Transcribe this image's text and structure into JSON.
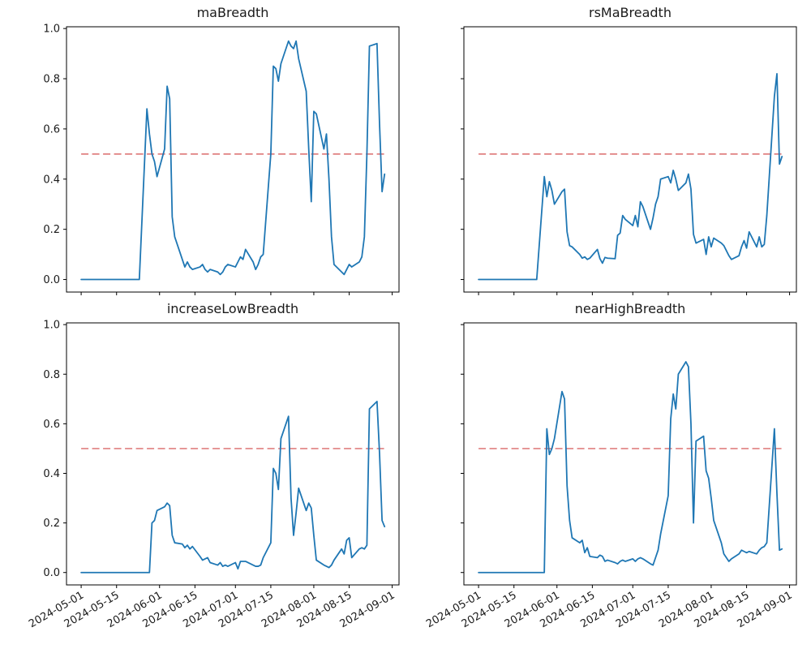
{
  "figure": {
    "background": "#ffffff",
    "spine_color": "#000000",
    "text_color": "#1a1a1a"
  },
  "chart_data": {
    "type": "line",
    "layout": "2x2-grid",
    "grid": false,
    "legend": "none",
    "line_color": "#1f77b4",
    "threshold": {
      "y": 0.5,
      "color": "#e08080",
      "style": "dashed"
    },
    "ylim": [
      -0.05,
      1.007
    ],
    "xlim_days": [
      -5.8,
      125.7
    ],
    "y_tick_labels": [
      "0.0",
      "0.2",
      "0.4",
      "0.6",
      "0.8",
      "1.0"
    ],
    "x_tick_labels": [
      "2024-05-01",
      "2024-05-15",
      "2024-06-01",
      "2024-06-15",
      "2024-07-01",
      "2024-07-15",
      "2024-08-01",
      "2024-08-15",
      "2024-09-01"
    ],
    "dates": [
      "2024-05-01",
      "2024-05-02",
      "2024-05-03",
      "2024-05-06",
      "2024-05-07",
      "2024-05-08",
      "2024-05-09",
      "2024-05-10",
      "2024-05-13",
      "2024-05-14",
      "2024-05-15",
      "2024-05-16",
      "2024-05-17",
      "2024-05-20",
      "2024-05-21",
      "2024-05-22",
      "2024-05-23",
      "2024-05-24",
      "2024-05-27",
      "2024-05-28",
      "2024-05-29",
      "2024-05-30",
      "2024-05-31",
      "2024-06-03",
      "2024-06-04",
      "2024-06-05",
      "2024-06-06",
      "2024-06-07",
      "2024-06-10",
      "2024-06-11",
      "2024-06-12",
      "2024-06-13",
      "2024-06-14",
      "2024-06-17",
      "2024-06-18",
      "2024-06-19",
      "2024-06-20",
      "2024-06-21",
      "2024-06-24",
      "2024-06-25",
      "2024-06-26",
      "2024-06-27",
      "2024-06-28",
      "2024-07-01",
      "2024-07-02",
      "2024-07-03",
      "2024-07-04",
      "2024-07-05",
      "2024-07-08",
      "2024-07-09",
      "2024-07-10",
      "2024-07-11",
      "2024-07-12",
      "2024-07-15",
      "2024-07-16",
      "2024-07-17",
      "2024-07-18",
      "2024-07-19",
      "2024-07-22",
      "2024-07-23",
      "2024-07-24",
      "2024-07-25",
      "2024-07-26",
      "2024-07-29",
      "2024-07-30",
      "2024-07-31",
      "2024-08-01",
      "2024-08-02",
      "2024-08-05",
      "2024-08-06",
      "2024-08-07",
      "2024-08-08",
      "2024-08-09",
      "2024-08-12",
      "2024-08-13",
      "2024-08-14",
      "2024-08-15",
      "2024-08-16",
      "2024-08-19",
      "2024-08-20",
      "2024-08-21",
      "2024-08-22",
      "2024-08-23",
      "2024-08-26",
      "2024-08-27",
      "2024-08-28",
      "2024-08-29"
    ],
    "subplots": [
      {
        "title": "maBreadth",
        "values": [
          0,
          0,
          0,
          0,
          0,
          0,
          0,
          0,
          0,
          0,
          0,
          0,
          0,
          0,
          0,
          0,
          0,
          0,
          0.68,
          0.58,
          0.5,
          0.47,
          0.41,
          0.52,
          0.77,
          0.72,
          0.25,
          0.17,
          0.08,
          0.05,
          0.07,
          0.05,
          0.04,
          0.05,
          0.06,
          0.04,
          0.03,
          0.04,
          0.03,
          0.02,
          0.03,
          0.05,
          0.06,
          0.05,
          0.07,
          0.09,
          0.08,
          0.12,
          0.07,
          0.04,
          0.06,
          0.09,
          0.1,
          0.5,
          0.85,
          0.84,
          0.79,
          0.86,
          0.95,
          0.93,
          0.92,
          0.95,
          0.88,
          0.75,
          0.52,
          0.31,
          0.67,
          0.66,
          0.52,
          0.58,
          0.4,
          0.17,
          0.06,
          0.03,
          0.02,
          0.04,
          0.06,
          0.05,
          0.07,
          0.09,
          0.17,
          0.5,
          0.93,
          0.94,
          0.62,
          0.35,
          0.42
        ]
      },
      {
        "title": "rsMaBreadth",
        "values": [
          0,
          0,
          0,
          0,
          0,
          0,
          0,
          0,
          0,
          0,
          0,
          0,
          0,
          0,
          0,
          0,
          0,
          0,
          0.41,
          0.33,
          0.39,
          0.355,
          0.3,
          0.35,
          0.36,
          0.19,
          0.135,
          0.13,
          0.1,
          0.085,
          0.09,
          0.08,
          0.085,
          0.12,
          0.083,
          0.065,
          0.088,
          0.085,
          0.083,
          0.176,
          0.185,
          0.255,
          0.24,
          0.215,
          0.255,
          0.21,
          0.31,
          0.29,
          0.2,
          0.245,
          0.3,
          0.33,
          0.4,
          0.41,
          0.385,
          0.435,
          0.4,
          0.355,
          0.385,
          0.42,
          0.36,
          0.18,
          0.145,
          0.16,
          0.1,
          0.17,
          0.13,
          0.165,
          0.145,
          0.135,
          0.115,
          0.095,
          0.08,
          0.095,
          0.13,
          0.155,
          0.125,
          0.19,
          0.13,
          0.17,
          0.13,
          0.14,
          0.255,
          0.73,
          0.82,
          0.46,
          0.49
        ]
      },
      {
        "title": "increaseLowBreadth",
        "values": [
          0,
          0,
          0,
          0,
          0,
          0,
          0,
          0,
          0,
          0,
          0,
          0,
          0,
          0,
          0,
          0,
          0,
          0,
          0,
          0,
          0.2,
          0.21,
          0.25,
          0.265,
          0.28,
          0.27,
          0.15,
          0.12,
          0.115,
          0.1,
          0.11,
          0.095,
          0.105,
          0.065,
          0.05,
          0.055,
          0.06,
          0.04,
          0.03,
          0.04,
          0.025,
          0.03,
          0.025,
          0.04,
          0.015,
          0.045,
          0.045,
          0.045,
          0.03,
          0.025,
          0.025,
          0.03,
          0.06,
          0.12,
          0.42,
          0.4,
          0.335,
          0.54,
          0.63,
          0.3,
          0.15,
          0.24,
          0.34,
          0.25,
          0.28,
          0.26,
          0.15,
          0.05,
          0.03,
          0.025,
          0.02,
          0.03,
          0.05,
          0.095,
          0.075,
          0.13,
          0.14,
          0.06,
          0.095,
          0.1,
          0.095,
          0.11,
          0.66,
          0.69,
          0.48,
          0.21,
          0.185
        ]
      },
      {
        "title": "nearHighBreadth",
        "values": [
          0,
          0,
          0,
          0,
          0,
          0,
          0,
          0,
          0,
          0,
          0,
          0,
          0,
          0,
          0,
          0,
          0,
          0,
          0,
          0.58,
          0.476,
          0.5,
          0.54,
          0.73,
          0.7,
          0.35,
          0.21,
          0.14,
          0.12,
          0.13,
          0.08,
          0.1,
          0.065,
          0.06,
          0.07,
          0.065,
          0.045,
          0.05,
          0.04,
          0.035,
          0.045,
          0.05,
          0.045,
          0.055,
          0.045,
          0.055,
          0.06,
          0.055,
          0.035,
          0.03,
          0.06,
          0.09,
          0.155,
          0.31,
          0.62,
          0.72,
          0.66,
          0.8,
          0.85,
          0.83,
          0.6,
          0.2,
          0.53,
          0.55,
          0.41,
          0.38,
          0.3,
          0.21,
          0.12,
          0.075,
          0.06,
          0.045,
          0.055,
          0.075,
          0.09,
          0.085,
          0.08,
          0.085,
          0.075,
          0.09,
          0.1,
          0.105,
          0.12,
          0.58,
          0.32,
          0.09,
          0.095
        ]
      }
    ]
  }
}
